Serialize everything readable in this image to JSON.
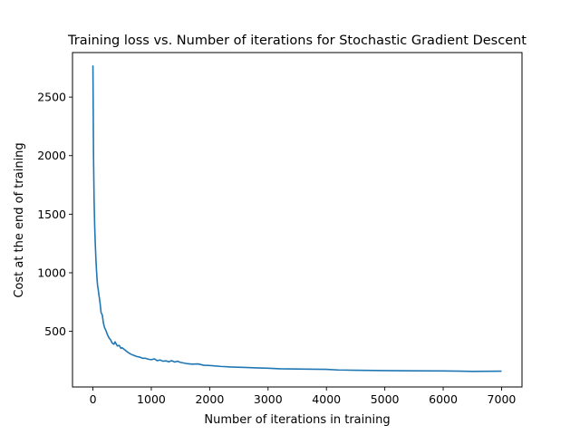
{
  "chart_data": {
    "type": "line",
    "title": "Training loss vs. Number of iterations for Stochastic Gradient Descent",
    "xlabel": "Number of iterations in training",
    "ylabel": "Cost at the end of training",
    "xlim": [
      -350,
      7350
    ],
    "ylim": [
      25,
      2880
    ],
    "xticks": [
      0,
      1000,
      2000,
      3000,
      4000,
      5000,
      6000,
      7000
    ],
    "xtick_labels": [
      "0",
      "1000",
      "2000",
      "3000",
      "4000",
      "5000",
      "6000",
      "7000"
    ],
    "yticks": [
      500,
      1000,
      1500,
      2000,
      2500
    ],
    "ytick_labels": [
      "500",
      "1000",
      "1500",
      "2000",
      "2500"
    ],
    "grid": false,
    "line_color": "#1f77b4",
    "series": [
      {
        "name": "",
        "x": [
          0,
          10,
          20,
          30,
          40,
          50,
          60,
          70,
          80,
          90,
          100,
          120,
          140,
          160,
          180,
          200,
          220,
          250,
          280,
          300,
          330,
          360,
          380,
          400,
          420,
          450,
          480,
          500,
          550,
          600,
          650,
          700,
          750,
          800,
          850,
          900,
          950,
          1000,
          1050,
          1100,
          1150,
          1200,
          1250,
          1300,
          1350,
          1400,
          1450,
          1500,
          1600,
          1700,
          1800,
          1900,
          2000,
          2200,
          2400,
          2600,
          2800,
          3000,
          3200,
          3500,
          3800,
          4000,
          4200,
          4500,
          5000,
          5500,
          6000,
          6500,
          7000
        ],
        "y": [
          2770,
          2000,
          1620,
          1400,
          1250,
          1130,
          1030,
          950,
          890,
          860,
          820,
          750,
          660,
          640,
          570,
          530,
          510,
          470,
          440,
          430,
          400,
          390,
          410,
          390,
          375,
          380,
          355,
          360,
          340,
          320,
          305,
          295,
          285,
          280,
          270,
          270,
          262,
          258,
          265,
          250,
          255,
          245,
          248,
          240,
          250,
          238,
          245,
          235,
          225,
          220,
          222,
          210,
          208,
          200,
          195,
          192,
          188,
          185,
          180,
          178,
          176,
          175,
          170,
          168,
          165,
          163,
          162,
          158,
          160
        ]
      }
    ]
  }
}
